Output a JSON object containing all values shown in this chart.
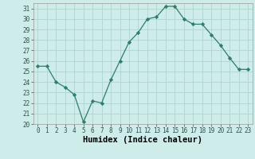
{
  "x": [
    0,
    1,
    2,
    3,
    4,
    5,
    6,
    7,
    8,
    9,
    10,
    11,
    12,
    13,
    14,
    15,
    16,
    17,
    18,
    19,
    20,
    21,
    22,
    23
  ],
  "y": [
    25.5,
    25.5,
    24.0,
    23.5,
    22.8,
    20.2,
    22.2,
    22.0,
    24.2,
    26.0,
    27.8,
    28.7,
    30.0,
    30.2,
    31.2,
    31.2,
    30.0,
    29.5,
    29.5,
    28.5,
    27.5,
    26.3,
    25.2,
    25.2
  ],
  "line_color": "#2e7d6e",
  "marker": "D",
  "marker_size": 2.2,
  "bg_color": "#ceecea",
  "grid_color": "#aed4d0",
  "xlabel": "Humidex (Indice chaleur)",
  "ylim": [
    20,
    31.5
  ],
  "yticks": [
    20,
    21,
    22,
    23,
    24,
    25,
    26,
    27,
    28,
    29,
    30,
    31
  ],
  "xticks": [
    0,
    1,
    2,
    3,
    4,
    5,
    6,
    7,
    8,
    9,
    10,
    11,
    12,
    13,
    14,
    15,
    16,
    17,
    18,
    19,
    20,
    21,
    22,
    23
  ],
  "tick_fontsize": 5.5,
  "label_fontsize": 7.5
}
